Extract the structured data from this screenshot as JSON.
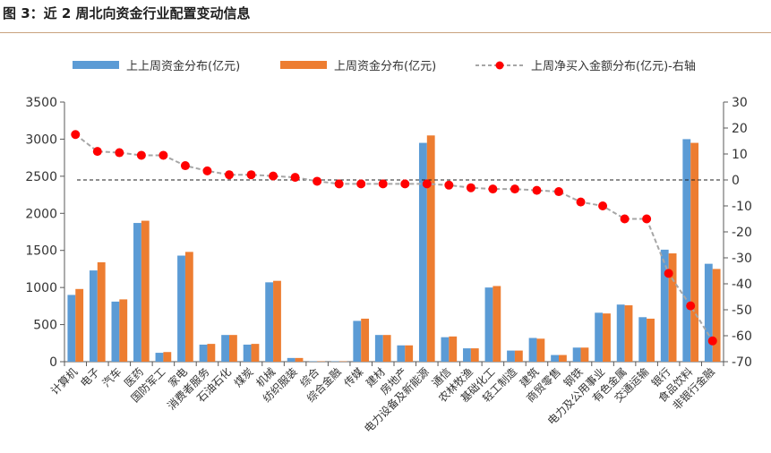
{
  "header": {
    "title": "图 3：近 2 周北向资金行业配置变动信息"
  },
  "colors": {
    "prev2": "#5b9bd5",
    "prev1": "#ed7d31",
    "line": "#a6a6a6",
    "marker": "#ff0000",
    "axis": "#595959",
    "rule": "#c9a27e"
  },
  "chart_data": {
    "type": "bar",
    "title": "",
    "xlabel": "",
    "ylabel": "",
    "legend_position": "top",
    "grid": false,
    "ylim": [
      0,
      3500
    ],
    "yticks": [
      0,
      500,
      1000,
      1500,
      2000,
      2500,
      3000,
      3500
    ],
    "y2lim": [
      -70,
      30
    ],
    "y2ticks": [
      30,
      20,
      10,
      0,
      -10,
      -20,
      -30,
      -40,
      -50,
      -60,
      -70
    ],
    "categories": [
      "计算机",
      "电子",
      "汽车",
      "医药",
      "国防军工",
      "家电",
      "消费者服务",
      "石油石化",
      "煤炭",
      "机械",
      "纺织服装",
      "综合",
      "综合金融",
      "传媒",
      "建材",
      "房地产",
      "电力设备及新能源",
      "通信",
      "农林牧渔",
      "基础化工",
      "轻工制造",
      "建筑",
      "商贸零售",
      "钢铁",
      "电力及公用事业",
      "有色金属",
      "交通运输",
      "银行",
      "食品饮料",
      "非银行金融"
    ],
    "series": [
      {
        "name": "上上周资金分布(亿元)",
        "axis": "left",
        "kind": "bar",
        "values": [
          900,
          1230,
          810,
          1870,
          120,
          1430,
          230,
          360,
          230,
          1070,
          50,
          5,
          5,
          550,
          360,
          220,
          2950,
          330,
          180,
          1000,
          150,
          320,
          90,
          190,
          660,
          770,
          600,
          1510,
          3000,
          1320
        ]
      },
      {
        "name": "上周资金分布(亿元)",
        "axis": "left",
        "kind": "bar",
        "values": [
          980,
          1340,
          840,
          1900,
          130,
          1480,
          240,
          360,
          240,
          1090,
          50,
          5,
          5,
          580,
          360,
          220,
          3050,
          340,
          180,
          1020,
          150,
          310,
          90,
          190,
          650,
          760,
          580,
          1460,
          2950,
          1250
        ]
      },
      {
        "name": "上周净买入金额分布(亿元)-右轴",
        "axis": "right",
        "kind": "line",
        "values": [
          17.5,
          11,
          10.5,
          9.5,
          9.5,
          5.5,
          3.5,
          2,
          2,
          1.5,
          1,
          -0.5,
          -1.5,
          -1.5,
          -1.5,
          -1.5,
          -1.5,
          -2,
          -3,
          -3.5,
          -3.5,
          -4,
          -4.5,
          -8.5,
          -10,
          -15,
          -15,
          -36,
          -48.5,
          -62
        ]
      }
    ],
    "reference_line": {
      "axis": "right",
      "value": 0,
      "style": "dashed"
    }
  }
}
